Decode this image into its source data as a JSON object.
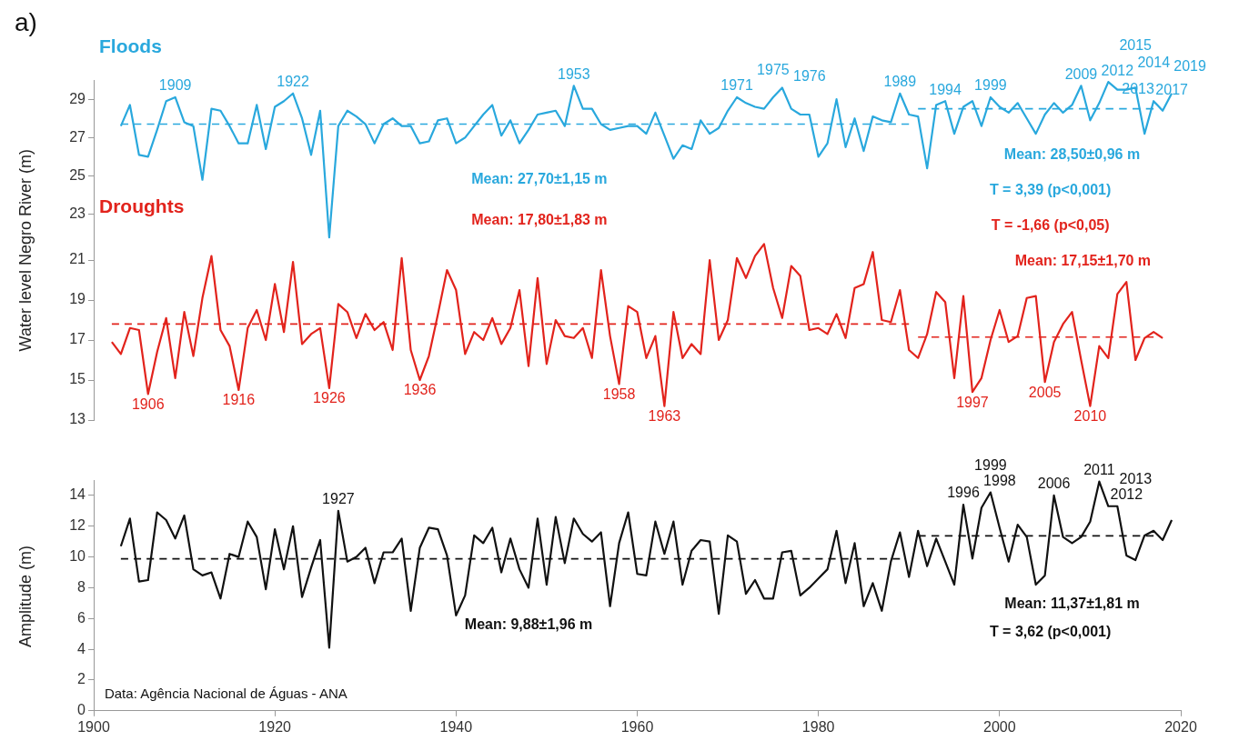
{
  "chart_data": [
    {
      "type": "line",
      "title": "a)",
      "ylabel": "Water level Negro River (m)",
      "xlim": [
        1900,
        2020
      ],
      "ylim": [
        21.5,
        30
      ],
      "yticks": [
        23,
        25,
        27,
        29
      ],
      "tick_labels": "y",
      "grid": false,
      "legend": false,
      "marker": "none",
      "x": [
        1903,
        1904,
        1905,
        1906,
        1907,
        1908,
        1909,
        1910,
        1911,
        1912,
        1913,
        1914,
        1915,
        1916,
        1917,
        1918,
        1919,
        1920,
        1921,
        1922,
        1923,
        1924,
        1925,
        1926,
        1927,
        1928,
        1929,
        1930,
        1931,
        1932,
        1933,
        1934,
        1935,
        1936,
        1937,
        1938,
        1939,
        1940,
        1941,
        1942,
        1943,
        1944,
        1945,
        1946,
        1947,
        1948,
        1949,
        1950,
        1951,
        1952,
        1953,
        1954,
        1955,
        1956,
        1957,
        1958,
        1959,
        1960,
        1961,
        1962,
        1963,
        1964,
        1965,
        1966,
        1967,
        1968,
        1969,
        1970,
        1971,
        1972,
        1973,
        1974,
        1975,
        1976,
        1977,
        1978,
        1979,
        1980,
        1981,
        1982,
        1983,
        1984,
        1985,
        1986,
        1987,
        1988,
        1989,
        1990,
        1991,
        1992,
        1993,
        1994,
        1995,
        1996,
        1997,
        1998,
        1999,
        2000,
        2001,
        2002,
        2003,
        2004,
        2005,
        2006,
        2007,
        2008,
        2009,
        2010,
        2011,
        2012,
        2013,
        2014,
        2015,
        2016,
        2017,
        2018,
        2019
      ],
      "series": [
        {
          "name": "Floods",
          "color": "#29a8dd",
          "values": [
            27.6,
            28.7,
            26.1,
            26.0,
            27.4,
            28.9,
            29.1,
            27.8,
            27.6,
            24.8,
            28.5,
            28.4,
            27.6,
            26.7,
            26.7,
            28.7,
            26.4,
            28.6,
            28.9,
            29.3,
            28.0,
            26.1,
            28.4,
            21.8,
            27.6,
            28.4,
            28.1,
            27.7,
            26.7,
            27.7,
            28.0,
            27.6,
            27.6,
            26.7,
            26.8,
            27.9,
            28.0,
            26.7,
            27.0,
            27.6,
            28.2,
            28.7,
            27.1,
            27.9,
            26.7,
            27.4,
            28.2,
            28.3,
            28.4,
            27.6,
            29.7,
            28.5,
            28.5,
            27.7,
            27.4,
            27.5,
            27.6,
            27.6,
            27.2,
            28.3,
            27.1,
            25.9,
            26.6,
            26.4,
            27.9,
            27.2,
            27.5,
            28.4,
            29.1,
            28.8,
            28.6,
            28.5,
            29.1,
            29.6,
            28.5,
            28.2,
            28.2,
            26.0,
            26.7,
            29.0,
            26.5,
            28.0,
            26.3,
            28.1,
            27.9,
            27.8,
            29.3,
            28.2,
            28.1,
            25.4,
            28.7,
            28.9,
            27.2,
            28.6,
            28.9,
            27.6,
            29.1,
            28.6,
            28.3,
            28.8,
            28.0,
            27.2,
            28.2,
            28.8,
            28.3,
            28.7,
            29.7,
            27.9,
            28.8,
            29.9,
            29.5,
            29.5,
            29.6,
            27.2,
            28.9,
            28.4,
            29.3
          ]
        },
        {
          "type": "line",
          "x": [
            1903,
            1990
          ],
          "values": [
            27.7,
            27.7
          ],
          "color": "#29a8dd",
          "line_style": "dashed"
        },
        {
          "type": "line",
          "x": [
            1991,
            2017
          ],
          "values": [
            28.5,
            28.5
          ],
          "color": "#29a8dd",
          "line_style": "dashed"
        }
      ],
      "annotations": [
        {
          "text": "1909",
          "x": 1909,
          "y": 29.1
        },
        {
          "text": "1922",
          "x": 1922,
          "y": 29.3
        },
        {
          "text": "1953",
          "x": 1953,
          "y": 29.7
        },
        {
          "text": "1971",
          "x": 1971,
          "y": 29.1
        },
        {
          "text": "1975",
          "x": 1975,
          "y": 29.1
        },
        {
          "text": "1976",
          "x": 1976,
          "y": 29.6
        },
        {
          "text": "1989",
          "x": 1989,
          "y": 29.3
        },
        {
          "text": "1994",
          "x": 1994,
          "y": 28.9
        },
        {
          "text": "1999",
          "x": 1999,
          "y": 29.1
        },
        {
          "text": "2009",
          "x": 2009,
          "y": 29.7
        },
        {
          "text": "2012",
          "x": 2012,
          "y": 29.9
        },
        {
          "text": "2013",
          "x": 2013,
          "y": 29.5
        },
        {
          "text": "2014",
          "x": 2014,
          "y": 29.5
        },
        {
          "text": "2015",
          "x": 2015,
          "y": 29.6
        },
        {
          "text": "2017",
          "x": 2017,
          "y": 28.9
        },
        {
          "text": "2019",
          "x": 2019,
          "y": 29.3
        },
        "Mean: 27,70±1,15 m",
        "Mean: 28,50±0,96 m",
        "T = 3,39 (p<0,001)"
      ]
    },
    {
      "type": "line",
      "xlim": [
        1900,
        2020
      ],
      "ylim": [
        13,
        22
      ],
      "yticks": [
        13,
        15,
        17,
        19,
        21
      ],
      "tick_labels": "y",
      "grid": false,
      "legend": false,
      "marker": "none",
      "x": [
        1902,
        1903,
        1904,
        1905,
        1906,
        1907,
        1908,
        1909,
        1910,
        1911,
        1912,
        1913,
        1914,
        1915,
        1916,
        1917,
        1918,
        1919,
        1920,
        1921,
        1922,
        1923,
        1924,
        1925,
        1926,
        1927,
        1928,
        1929,
        1930,
        1931,
        1932,
        1933,
        1934,
        1935,
        1936,
        1937,
        1938,
        1939,
        1940,
        1941,
        1942,
        1943,
        1944,
        1945,
        1946,
        1947,
        1948,
        1949,
        1950,
        1951,
        1952,
        1953,
        1954,
        1955,
        1956,
        1957,
        1958,
        1959,
        1960,
        1961,
        1962,
        1963,
        1964,
        1965,
        1966,
        1967,
        1968,
        1969,
        1970,
        1971,
        1972,
        1973,
        1974,
        1975,
        1976,
        1977,
        1978,
        1979,
        1980,
        1981,
        1982,
        1983,
        1984,
        1985,
        1986,
        1987,
        1988,
        1989,
        1990,
        1991,
        1992,
        1993,
        1994,
        1995,
        1996,
        1997,
        1998,
        1999,
        2000,
        2001,
        2002,
        2003,
        2004,
        2005,
        2006,
        2007,
        2008,
        2009,
        2010,
        2011,
        2012,
        2013,
        2014,
        2015,
        2016,
        2017,
        2018
      ],
      "series": [
        {
          "name": "Droughts",
          "color": "#e2231c",
          "values": [
            16.9,
            16.3,
            17.6,
            17.5,
            14.3,
            16.4,
            18.1,
            15.1,
            18.4,
            16.2,
            19.1,
            21.2,
            17.5,
            16.7,
            14.5,
            17.6,
            18.5,
            17.0,
            19.8,
            17.4,
            20.9,
            16.8,
            17.3,
            17.6,
            14.6,
            18.8,
            18.4,
            17.1,
            18.3,
            17.5,
            17.9,
            16.5,
            21.1,
            16.5,
            15.0,
            16.2,
            18.3,
            20.5,
            19.5,
            16.3,
            17.4,
            17.0,
            18.1,
            16.8,
            17.6,
            19.5,
            15.7,
            20.1,
            15.8,
            18.0,
            17.2,
            17.1,
            17.6,
            16.1,
            20.5,
            17.2,
            14.8,
            18.7,
            18.4,
            16.1,
            17.2,
            13.7,
            18.4,
            16.1,
            16.8,
            16.3,
            21.0,
            17.0,
            18.0,
            21.1,
            20.1,
            21.2,
            21.8,
            19.6,
            18.1,
            20.7,
            20.2,
            17.5,
            17.6,
            17.3,
            18.3,
            17.1,
            19.6,
            19.8,
            21.4,
            18.0,
            17.9,
            19.5,
            16.5,
            16.1,
            17.3,
            19.4,
            18.9,
            15.1,
            19.2,
            14.4,
            15.1,
            17.0,
            18.5,
            16.9,
            17.2,
            19.1,
            19.2,
            14.9,
            16.9,
            17.8,
            18.4,
            16.0,
            13.7,
            16.7,
            16.1,
            19.3,
            19.9,
            16.0,
            17.1,
            17.4,
            17.1
          ]
        },
        {
          "type": "line",
          "x": [
            1902,
            1990
          ],
          "values": [
            17.8,
            17.8
          ],
          "color": "#e2231c",
          "line_style": "dashed"
        },
        {
          "type": "line",
          "x": [
            1991,
            2017
          ],
          "values": [
            17.15,
            17.15
          ],
          "color": "#e2231c",
          "line_style": "dashed"
        }
      ],
      "annotations": [
        {
          "text": "1906",
          "x": 1906,
          "y": 14.3
        },
        {
          "text": "1916",
          "x": 1916,
          "y": 14.5
        },
        {
          "text": "1926",
          "x": 1926,
          "y": 14.6
        },
        {
          "text": "1936",
          "x": 1936,
          "y": 15.0
        },
        {
          "text": "1958",
          "x": 1958,
          "y": 14.8
        },
        {
          "text": "1963",
          "x": 1963,
          "y": 13.7
        },
        {
          "text": "1997",
          "x": 1997,
          "y": 14.4
        },
        {
          "text": "2005",
          "x": 2005,
          "y": 14.9
        },
        {
          "text": "2010",
          "x": 2010,
          "y": 13.7
        },
        "Mean: 17,80±1,83 m",
        "T = -1,66 (p<0,05)",
        "Mean: 17,15±1,70 m"
      ]
    },
    {
      "type": "line",
      "ylabel": "Amplitude (m)",
      "xlim": [
        1900,
        2020
      ],
      "xticks": [
        1900,
        1920,
        1940,
        1960,
        1980,
        2000,
        2020
      ],
      "ylim": [
        0,
        15
      ],
      "yticks": [
        0,
        2,
        4,
        6,
        8,
        10,
        12,
        14
      ],
      "grid": false,
      "legend": false,
      "marker": "none",
      "x": [
        1903,
        1904,
        1905,
        1906,
        1907,
        1908,
        1909,
        1910,
        1911,
        1912,
        1913,
        1914,
        1915,
        1916,
        1917,
        1918,
        1919,
        1920,
        1921,
        1922,
        1923,
        1924,
        1925,
        1926,
        1927,
        1928,
        1929,
        1930,
        1931,
        1932,
        1933,
        1934,
        1935,
        1936,
        1937,
        1938,
        1939,
        1940,
        1941,
        1942,
        1943,
        1944,
        1945,
        1946,
        1947,
        1948,
        1949,
        1950,
        1951,
        1952,
        1953,
        1954,
        1955,
        1956,
        1957,
        1958,
        1959,
        1960,
        1961,
        1962,
        1963,
        1964,
        1965,
        1966,
        1967,
        1968,
        1969,
        1970,
        1971,
        1972,
        1973,
        1974,
        1975,
        1976,
        1977,
        1978,
        1979,
        1980,
        1981,
        1982,
        1983,
        1984,
        1985,
        1986,
        1987,
        1988,
        1989,
        1990,
        1991,
        1992,
        1993,
        1994,
        1995,
        1996,
        1997,
        1998,
        1999,
        2000,
        2001,
        2002,
        2003,
        2004,
        2005,
        2006,
        2007,
        2008,
        2009,
        2010,
        2011,
        2012,
        2013,
        2014,
        2015,
        2016,
        2017,
        2018,
        2019
      ],
      "series": [
        {
          "color": "#111111",
          "values": [
            10.7,
            12.5,
            8.4,
            8.5,
            12.9,
            12.4,
            11.2,
            12.7,
            9.2,
            8.8,
            9.0,
            7.3,
            10.2,
            10.0,
            12.3,
            11.3,
            7.9,
            11.8,
            9.2,
            12.0,
            7.4,
            9.3,
            11.1,
            4.1,
            13.0,
            9.7,
            10.0,
            10.6,
            8.3,
            10.3,
            10.3,
            11.2,
            6.5,
            10.6,
            11.9,
            11.8,
            10.1,
            6.2,
            7.5,
            11.4,
            10.9,
            11.9,
            9.0,
            11.2,
            9.2,
            8.0,
            12.5,
            8.2,
            12.6,
            9.6,
            12.5,
            11.5,
            11.0,
            11.6,
            6.8,
            10.9,
            12.9,
            8.9,
            8.8,
            12.3,
            10.2,
            12.3,
            8.2,
            10.4,
            11.1,
            11.0,
            6.3,
            11.4,
            11.0,
            7.6,
            8.5,
            7.3,
            7.3,
            10.3,
            10.4,
            7.5,
            8.0,
            8.6,
            9.2,
            11.7,
            8.3,
            10.9,
            6.8,
            8.3,
            6.5,
            9.7,
            11.6,
            8.7,
            11.7,
            9.4,
            11.2,
            9.7,
            8.2,
            13.4,
            9.9,
            13.2,
            14.2,
            11.9,
            9.7,
            12.1,
            11.3,
            8.2,
            8.8,
            14.0,
            11.3,
            10.9,
            11.3,
            12.3,
            14.9,
            13.3,
            13.3,
            10.1,
            9.8,
            11.4,
            11.7,
            11.1,
            12.4
          ]
        },
        {
          "type": "line",
          "x": [
            1903,
            1989
          ],
          "values": [
            9.88,
            9.88
          ],
          "color": "#111111",
          "line_style": "dashed"
        },
        {
          "type": "line",
          "x": [
            1991,
            2017
          ],
          "values": [
            11.37,
            11.37
          ],
          "color": "#111111",
          "line_style": "dashed"
        }
      ],
      "annotations": [
        {
          "text": "1927",
          "x": 1927,
          "y": 13.0
        },
        {
          "text": "1996",
          "x": 1996,
          "y": 13.4
        },
        {
          "text": "1998",
          "x": 1998,
          "y": 13.2
        },
        {
          "text": "1999",
          "x": 1999,
          "y": 14.2
        },
        {
          "text": "2006",
          "x": 2006,
          "y": 14.0
        },
        {
          "text": "2011",
          "x": 2011,
          "y": 14.9
        },
        {
          "text": "2012",
          "x": 2012,
          "y": 13.3
        },
        {
          "text": "2013",
          "x": 2013,
          "y": 13.3
        },
        "Mean: 9,88±1,96 m",
        "Mean: 11,37±1,81 m",
        "T = 3,62 (p<0,001)",
        "Data: Agência Nacional de Águas - ANA"
      ]
    }
  ]
}
